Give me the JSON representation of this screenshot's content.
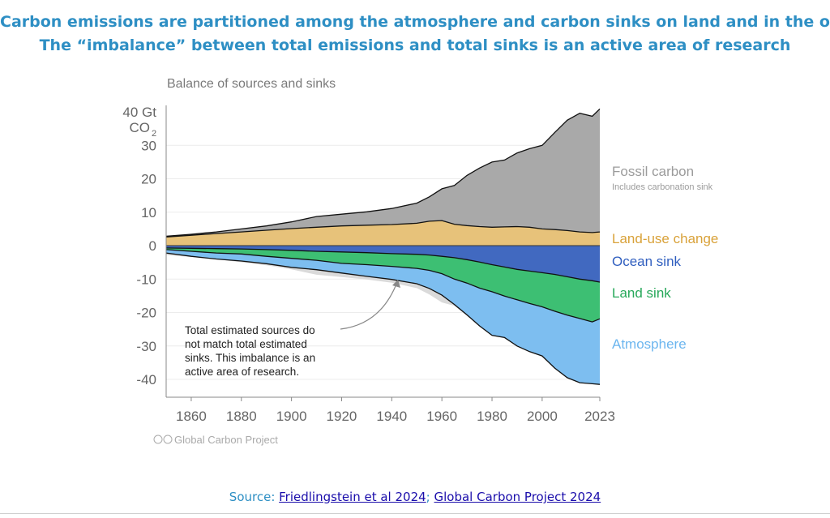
{
  "headline": {
    "line1": "Carbon emissions are partitioned among the atmosphere and carbon sinks on land and in the ocean",
    "line2": "The “imbalance” between total emissions and total sinks is an active area of research"
  },
  "source": {
    "prefix": "Source: ",
    "link1": "Friedlingstein et al 2024",
    "separator": "; ",
    "link2": "Global Carbon Project 2024"
  },
  "chart_data": {
    "type": "area",
    "title": "Balance of sources and sinks",
    "ylabel_top": "40 Gt",
    "ylabel_unit": "CO",
    "ylabel_sub": "2",
    "xlim": [
      1850,
      2023
    ],
    "ylim": [
      -45,
      42
    ],
    "xticks": [
      1860,
      1880,
      1900,
      1920,
      1940,
      1960,
      1980,
      2000,
      2023
    ],
    "yticks": [
      {
        "value": 30,
        "label": "30"
      },
      {
        "value": 20,
        "label": "20"
      },
      {
        "value": 10,
        "label": "10"
      },
      {
        "value": 0,
        "label": "0"
      },
      {
        "value": -10,
        "label": "-10"
      },
      {
        "value": -20,
        "label": "-20"
      },
      {
        "value": -30,
        "label": "-30"
      },
      {
        "value": -40,
        "label": "-40"
      }
    ],
    "x": [
      1850,
      1860,
      1870,
      1880,
      1890,
      1900,
      1910,
      1920,
      1930,
      1940,
      1950,
      1955,
      1960,
      1965,
      1970,
      1975,
      1980,
      1985,
      1990,
      1995,
      2000,
      2005,
      2010,
      2015,
      2020,
      2023
    ],
    "sources": [
      {
        "name": "Land-use change",
        "sublabel": "",
        "color": "#e7c27a",
        "values": [
          2.6,
          3.1,
          3.6,
          4.1,
          4.6,
          5.1,
          5.5,
          5.9,
          6.1,
          6.3,
          6.7,
          7.3,
          7.5,
          6.4,
          6.0,
          5.7,
          5.5,
          5.6,
          5.7,
          5.5,
          5.0,
          4.8,
          4.5,
          4.1,
          3.9,
          4.1
        ]
      },
      {
        "name": "Fossil carbon",
        "sublabel": "Includes carbonation sink",
        "color": "#a9a9a9",
        "values": [
          0.2,
          0.3,
          0.5,
          0.9,
          1.3,
          2.0,
          3.2,
          3.5,
          4.0,
          4.8,
          6.0,
          7.3,
          9.5,
          11.6,
          15.0,
          17.5,
          19.5,
          20.0,
          22.0,
          23.5,
          25.0,
          29.0,
          33.0,
          35.5,
          34.8,
          36.8
        ]
      }
    ],
    "sinks": [
      {
        "name": "Ocean sink",
        "color": "#4169c0",
        "values": [
          -0.7,
          -0.8,
          -0.9,
          -1.0,
          -1.2,
          -1.4,
          -1.7,
          -1.9,
          -2.1,
          -2.4,
          -2.6,
          -2.8,
          -3.2,
          -3.6,
          -4.2,
          -4.9,
          -5.7,
          -6.4,
          -7.1,
          -7.6,
          -8.1,
          -8.6,
          -9.3,
          -10.0,
          -10.5,
          -10.9
        ]
      },
      {
        "name": "Land sink",
        "color": "#3dbf73",
        "values": [
          -0.5,
          -0.9,
          -1.3,
          -1.5,
          -2.0,
          -2.4,
          -2.7,
          -3.4,
          -3.6,
          -3.8,
          -4.2,
          -4.6,
          -5.2,
          -6.4,
          -7.0,
          -7.8,
          -8.1,
          -8.7,
          -9.1,
          -9.7,
          -10.2,
          -11.0,
          -11.5,
          -11.8,
          -12.3,
          -11.0
        ]
      },
      {
        "name": "Atmosphere",
        "color": "#7dbef0",
        "values": [
          -1.0,
          -1.5,
          -1.8,
          -2.1,
          -2.2,
          -2.7,
          -2.8,
          -2.9,
          -3.5,
          -3.9,
          -4.6,
          -5.4,
          -6.4,
          -7.6,
          -9.5,
          -11.3,
          -13.0,
          -12.4,
          -13.8,
          -14.4,
          -14.7,
          -17.0,
          -18.7,
          -19.2,
          -18.5,
          -19.6
        ]
      }
    ],
    "grid": true,
    "legend_placement": "right",
    "annotation": "Total estimated sources do not match total estimated sinks. This imbalance is an active area of research.",
    "credit": "Global Carbon Project",
    "colors": {
      "axis": "#666666",
      "text_muted": "#7a7a7a",
      "imbalance": "#dadada",
      "ocean_label": "#2f5ebf",
      "land_label": "#27a85a",
      "luc_label": "#d9a23a",
      "atm_label": "#6cb6ef",
      "fossil_label": "#9b9b9b"
    }
  }
}
